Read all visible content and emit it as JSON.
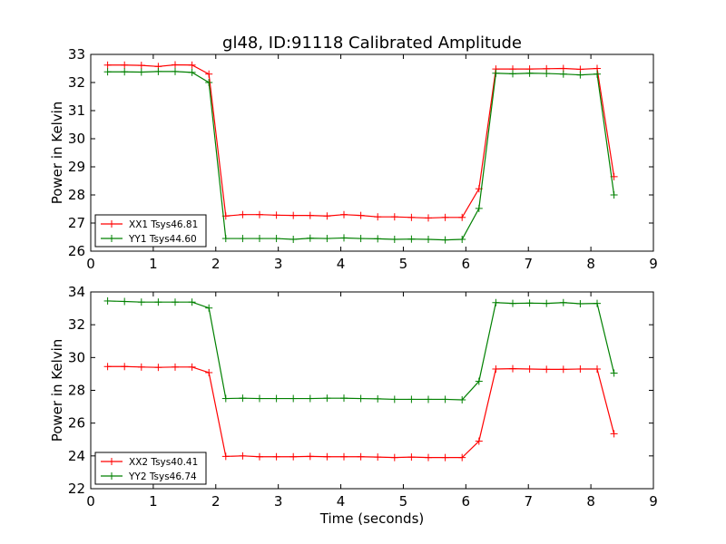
{
  "figure_title": "gl48, ID:91118 Calibrated Amplitude",
  "chart_data": [
    {
      "type": "line",
      "title": "gl48, ID:91118 Calibrated Amplitude",
      "xlabel": "",
      "ylabel": "Power in Kelvin",
      "xlim": [
        0,
        9
      ],
      "ylim": [
        26,
        33
      ],
      "xticks": [
        0,
        1,
        2,
        3,
        4,
        5,
        6,
        7,
        8,
        9
      ],
      "yticks": [
        26,
        27,
        28,
        29,
        30,
        31,
        32,
        33
      ],
      "legend_position": "lower-left",
      "grid": false,
      "x": [
        0.27,
        0.54,
        0.81,
        1.08,
        1.35,
        1.62,
        1.89,
        2.16,
        2.43,
        2.7,
        2.97,
        3.24,
        3.51,
        3.78,
        4.05,
        4.32,
        4.59,
        4.86,
        5.13,
        5.4,
        5.67,
        5.94,
        6.21,
        6.48,
        6.75,
        7.02,
        7.29,
        7.56,
        7.83,
        8.1,
        8.37
      ],
      "series": [
        {
          "name": "XX1 Tsys46.81",
          "color": "#ff0000",
          "values": [
            32.62,
            32.62,
            32.61,
            32.57,
            32.63,
            32.62,
            32.3,
            27.25,
            27.3,
            27.3,
            27.28,
            27.27,
            27.27,
            27.25,
            27.3,
            27.27,
            27.22,
            27.22,
            27.2,
            27.18,
            27.2,
            27.2,
            28.22,
            32.48,
            32.48,
            32.48,
            32.49,
            32.5,
            32.47,
            32.5,
            28.65
          ]
        },
        {
          "name": "YY1 Tsys44.60",
          "color": "#008000",
          "values": [
            32.38,
            32.38,
            32.37,
            32.39,
            32.39,
            32.36,
            32.0,
            26.45,
            26.45,
            26.45,
            26.45,
            26.42,
            26.46,
            26.45,
            26.47,
            26.45,
            26.44,
            26.42,
            26.43,
            26.42,
            26.4,
            26.42,
            27.52,
            32.33,
            32.31,
            32.33,
            32.32,
            32.3,
            32.27,
            32.3,
            28.0
          ]
        }
      ]
    },
    {
      "type": "line",
      "title": "",
      "xlabel": "Time (seconds)",
      "ylabel": "Power in Kelvin",
      "xlim": [
        0,
        9
      ],
      "ylim": [
        22,
        34
      ],
      "xticks": [
        0,
        1,
        2,
        3,
        4,
        5,
        6,
        7,
        8,
        9
      ],
      "yticks": [
        22,
        24,
        26,
        28,
        30,
        32,
        34
      ],
      "legend_position": "lower-left",
      "grid": false,
      "x": [
        0.27,
        0.54,
        0.81,
        1.08,
        1.35,
        1.62,
        1.89,
        2.16,
        2.43,
        2.7,
        2.97,
        3.24,
        3.51,
        3.78,
        4.05,
        4.32,
        4.59,
        4.86,
        5.13,
        5.4,
        5.67,
        5.94,
        6.21,
        6.48,
        6.75,
        7.02,
        7.29,
        7.56,
        7.83,
        8.1,
        8.37
      ],
      "series": [
        {
          "name": "XX2 Tsys40.41",
          "color": "#ff0000",
          "values": [
            29.45,
            29.45,
            29.42,
            29.4,
            29.42,
            29.42,
            29.08,
            23.97,
            24.0,
            23.95,
            23.95,
            23.95,
            23.97,
            23.95,
            23.95,
            23.95,
            23.93,
            23.9,
            23.93,
            23.9,
            23.9,
            23.9,
            24.9,
            29.3,
            29.32,
            29.3,
            29.28,
            29.28,
            29.3,
            29.3,
            25.35
          ]
        },
        {
          "name": "YY2 Tsys46.74",
          "color": "#008000",
          "values": [
            33.45,
            33.42,
            33.38,
            33.38,
            33.38,
            33.38,
            33.02,
            27.5,
            27.52,
            27.5,
            27.5,
            27.5,
            27.5,
            27.52,
            27.52,
            27.5,
            27.48,
            27.45,
            27.45,
            27.45,
            27.45,
            27.42,
            28.55,
            33.35,
            33.3,
            33.32,
            33.3,
            33.35,
            33.28,
            33.3,
            29.05
          ]
        }
      ]
    }
  ]
}
